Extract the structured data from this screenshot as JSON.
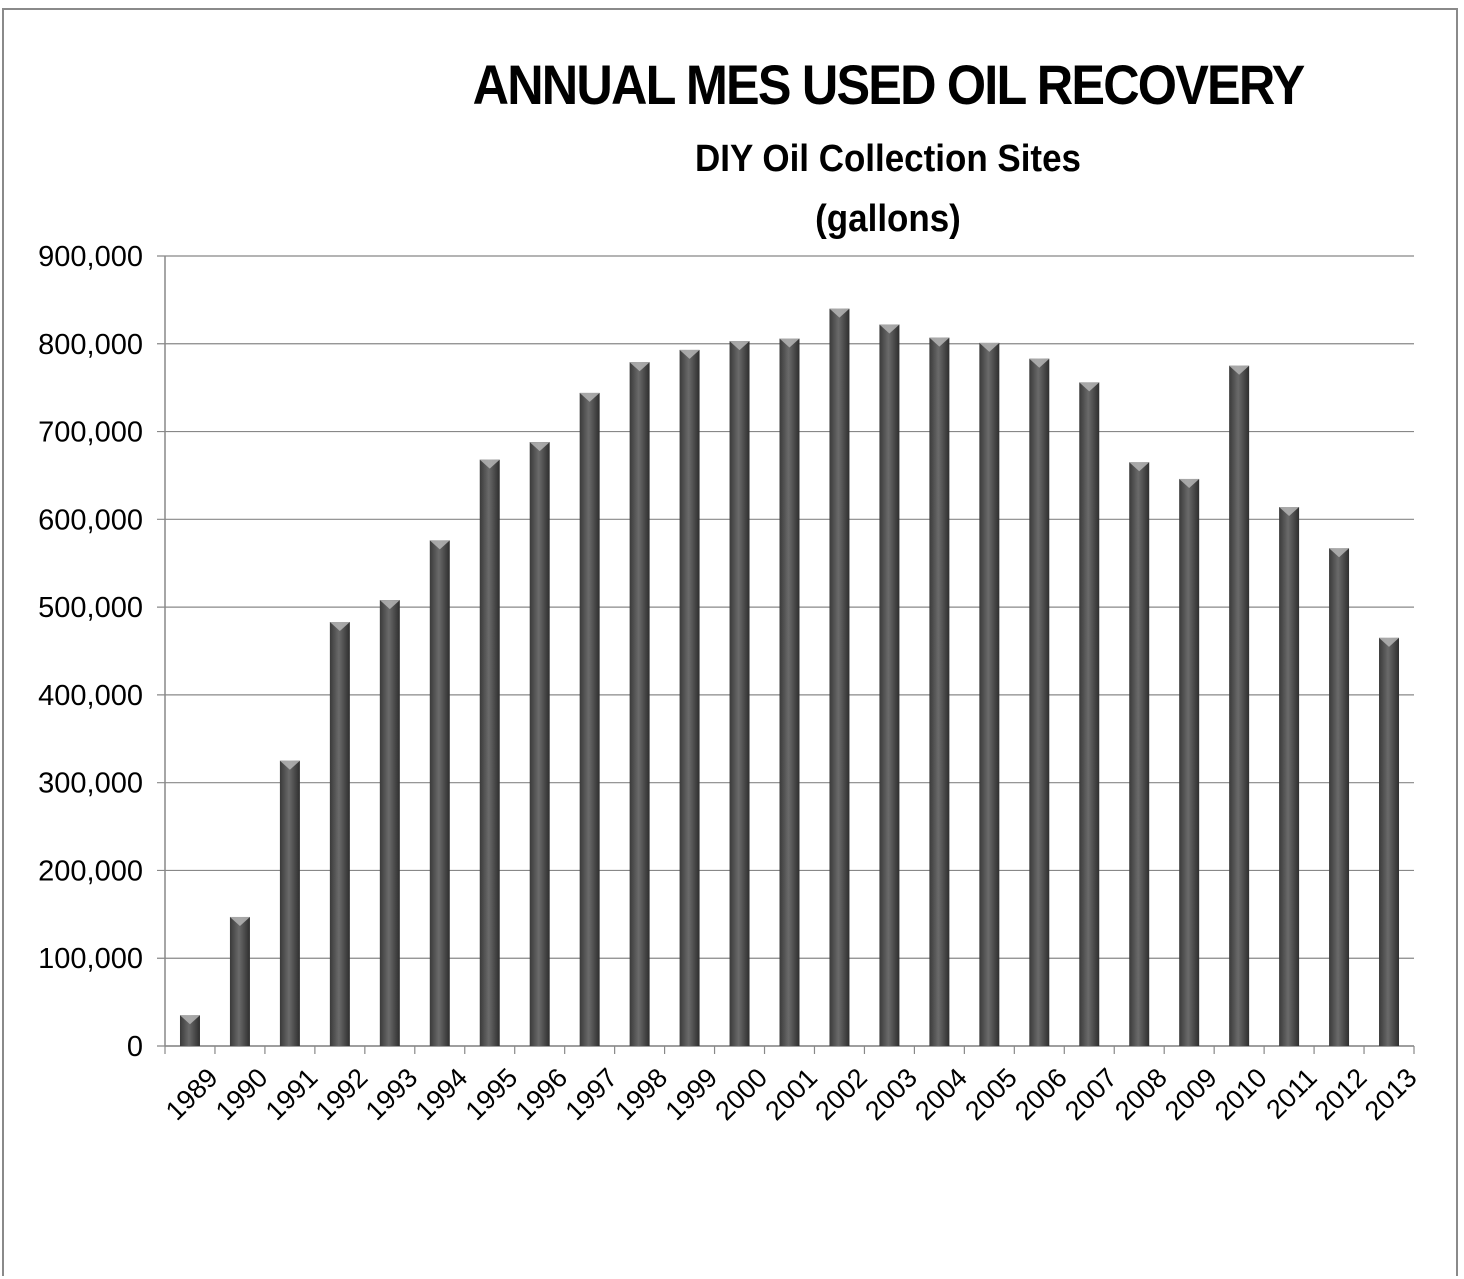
{
  "chart_data": {
    "type": "bar",
    "title": "ANNUAL MES USED OIL RECOVERY",
    "subtitle_lines": [
      "DIY Oil Collection Sites",
      "(gallons)"
    ],
    "xlabel": "",
    "ylabel": "",
    "ylim": [
      0,
      900000
    ],
    "yticks": [
      {
        "value": 0,
        "label": "0"
      },
      {
        "value": 100000,
        "label": "100,000"
      },
      {
        "value": 200000,
        "label": "200,000"
      },
      {
        "value": 300000,
        "label": "300,000"
      },
      {
        "value": 400000,
        "label": "400,000"
      },
      {
        "value": 500000,
        "label": "500,000"
      },
      {
        "value": 600000,
        "label": "600,000"
      },
      {
        "value": 700000,
        "label": "700,000"
      },
      {
        "value": 800000,
        "label": "800,000"
      },
      {
        "value": 900000,
        "label": "900,000"
      }
    ],
    "grid": true,
    "legend": "none",
    "bar_color": "#555555",
    "categories": [
      "1989",
      "1990",
      "1991",
      "1992",
      "1993",
      "1994",
      "1995",
      "1996",
      "1997",
      "1998",
      "1999",
      "2000",
      "2001",
      "2002",
      "2003",
      "2004",
      "2005",
      "2006",
      "2007",
      "2008",
      "2009",
      "2010",
      "2011",
      "2012",
      "2013"
    ],
    "values": [
      35000,
      147000,
      325000,
      483000,
      508000,
      576000,
      668000,
      688000,
      744000,
      779000,
      793000,
      803000,
      806000,
      840000,
      822000,
      807000,
      801000,
      783000,
      756000,
      665000,
      646000,
      775000,
      614000,
      567000,
      465000
    ]
  }
}
